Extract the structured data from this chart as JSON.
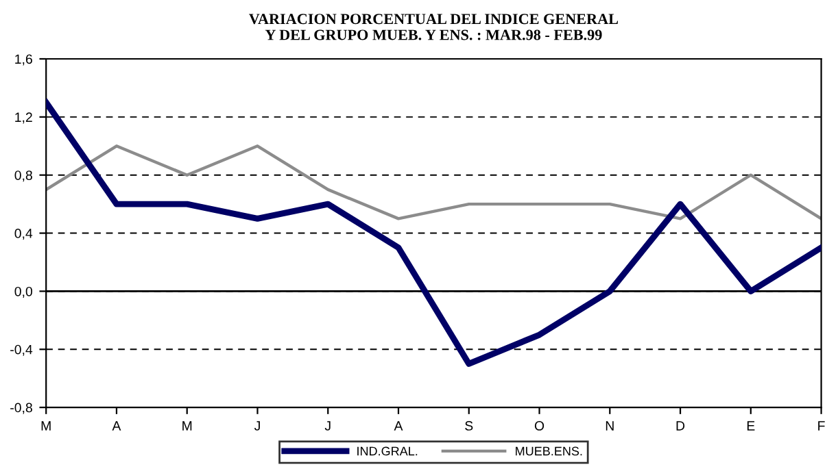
{
  "chart_data": {
    "type": "line",
    "title": "VARIACION PORCENTUAL DEL INDICE GENERAL\nY DEL GRUPO MUEB. Y ENS. : MAR.98 - FEB.99",
    "categories": [
      "M",
      "A",
      "M",
      "J",
      "J",
      "A",
      "S",
      "O",
      "N",
      "D",
      "E",
      "F"
    ],
    "series": [
      {
        "name": "IND.GRAL.",
        "color": "#000066",
        "values": [
          1.3,
          0.6,
          0.6,
          0.5,
          0.6,
          0.3,
          -0.5,
          -0.3,
          0.0,
          0.6,
          0.0,
          0.3
        ]
      },
      {
        "name": "MUEB.ENS.",
        "color": "#8c8c8c",
        "values": [
          0.7,
          1.0,
          0.8,
          1.0,
          0.7,
          0.5,
          0.6,
          0.6,
          0.6,
          0.5,
          0.8,
          0.5
        ]
      }
    ],
    "ylim": [
      -0.8,
      1.6
    ],
    "yticks": [
      {
        "value": -0.8,
        "label": "-0,8"
      },
      {
        "value": -0.4,
        "label": "-0,4"
      },
      {
        "value": 0.0,
        "label": "0,0"
      },
      {
        "value": 0.4,
        "label": "0,4"
      },
      {
        "value": 0.8,
        "label": "0,8"
      },
      {
        "value": 1.2,
        "label": "1,2"
      },
      {
        "value": 1.6,
        "label": "1,6"
      }
    ],
    "grid": "y",
    "legend": "bottom",
    "marker": "none",
    "ref_lines": [
      {
        "axis": "y",
        "value": 0.0,
        "color": "#000000",
        "line_style": "solid"
      }
    ]
  }
}
